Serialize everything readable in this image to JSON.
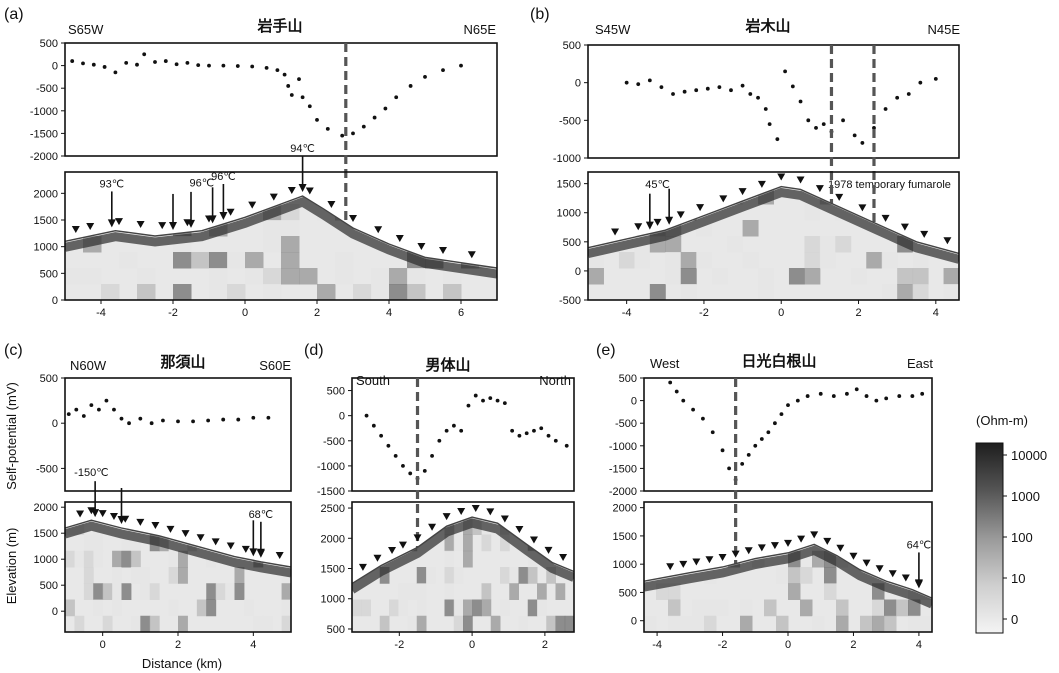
{
  "chart_data": [
    {
      "type": "scatter",
      "panel": "(a)",
      "title": "岩手山",
      "dir_left": "S65W",
      "dir_right": "N65E",
      "xlim": [
        -5,
        7
      ],
      "xticks": [
        -4,
        -2,
        0,
        2,
        4,
        6
      ],
      "sp": {
        "ylim": [
          -2000,
          500
        ],
        "yticks": [
          500,
          0,
          -500,
          -1000,
          -1500,
          -2000
        ],
        "series": [
          {
            "x": -4.8,
            "y": 100
          },
          {
            "x": -4.5,
            "y": 50
          },
          {
            "x": -4.2,
            "y": 20
          },
          {
            "x": -3.9,
            "y": -30
          },
          {
            "x": -3.6,
            "y": -150
          },
          {
            "x": -3.3,
            "y": 60
          },
          {
            "x": -3.0,
            "y": 20
          },
          {
            "x": -2.8,
            "y": 250
          },
          {
            "x": -2.5,
            "y": 80
          },
          {
            "x": -2.2,
            "y": 100
          },
          {
            "x": -1.9,
            "y": 30
          },
          {
            "x": -1.6,
            "y": 60
          },
          {
            "x": -1.3,
            "y": 10
          },
          {
            "x": -1.0,
            "y": 0
          },
          {
            "x": -0.6,
            "y": 0
          },
          {
            "x": -0.2,
            "y": -10
          },
          {
            "x": 0.2,
            "y": -20
          },
          {
            "x": 0.6,
            "y": -50
          },
          {
            "x": 0.9,
            "y": -100
          },
          {
            "x": 1.1,
            "y": -200
          },
          {
            "x": 1.2,
            "y": -450
          },
          {
            "x": 1.3,
            "y": -650
          },
          {
            "x": 1.5,
            "y": -300
          },
          {
            "x": 1.6,
            "y": -700
          },
          {
            "x": 1.8,
            "y": -900
          },
          {
            "x": 2.0,
            "y": -1200
          },
          {
            "x": 2.3,
            "y": -1400
          },
          {
            "x": 2.7,
            "y": -1550
          },
          {
            "x": 3.0,
            "y": -1500
          },
          {
            "x": 3.3,
            "y": -1350
          },
          {
            "x": 3.6,
            "y": -1150
          },
          {
            "x": 3.9,
            "y": -950
          },
          {
            "x": 4.2,
            "y": -700
          },
          {
            "x": 4.6,
            "y": -450
          },
          {
            "x": 5.0,
            "y": -250
          },
          {
            "x": 5.5,
            "y": -100
          },
          {
            "x": 6.0,
            "y": 0
          }
        ]
      },
      "res": {
        "ylim": [
          0,
          2400
        ],
        "yticks": [
          2000,
          1500,
          1000,
          500,
          0
        ],
        "surface": [
          [
            -5,
            1100
          ],
          [
            -3.6,
            1300
          ],
          [
            -2.5,
            1200
          ],
          [
            -1.2,
            1300
          ],
          [
            0,
            1550
          ],
          [
            1.0,
            1800
          ],
          [
            1.6,
            1950
          ],
          [
            2.2,
            1700
          ],
          [
            3.0,
            1350
          ],
          [
            4.0,
            1050
          ],
          [
            5.0,
            800
          ],
          [
            6.0,
            700
          ],
          [
            7.0,
            600
          ]
        ],
        "stations": [
          -4.7,
          -4.3,
          -3.5,
          -2.9,
          -2.3,
          -1.6,
          -1.0,
          -0.4,
          0.2,
          0.8,
          1.3,
          1.8,
          2.4,
          3.0,
          3.7,
          4.3,
          4.9,
          5.5,
          6.3
        ],
        "temp_labels": [
          {
            "label": "93℃",
            "x": -3.7
          },
          {
            "label": "96℃",
            "x": -1.2
          },
          {
            "label": "96℃",
            "x": -0.6
          },
          {
            "label": "94℃",
            "x": 1.6
          }
        ],
        "temp_arrows": [
          -3.7,
          -2.0,
          -1.5,
          -0.9,
          -0.6,
          1.6
        ]
      },
      "dashed_x": [
        2.8
      ]
    },
    {
      "type": "scatter",
      "panel": "(b)",
      "title": "岩木山",
      "dir_left": "S45W",
      "dir_right": "N45E",
      "xlim": [
        -5,
        4.6
      ],
      "xticks": [
        -4,
        -2,
        0,
        2,
        4
      ],
      "sp": {
        "ylim": [
          -1000,
          500
        ],
        "yticks": [
          500,
          0,
          -500,
          -1000
        ],
        "series": [
          {
            "x": -4.0,
            "y": 0
          },
          {
            "x": -3.7,
            "y": -20
          },
          {
            "x": -3.4,
            "y": 30
          },
          {
            "x": -3.1,
            "y": -60
          },
          {
            "x": -2.8,
            "y": -150
          },
          {
            "x": -2.5,
            "y": -120
          },
          {
            "x": -2.2,
            "y": -100
          },
          {
            "x": -1.9,
            "y": -80
          },
          {
            "x": -1.6,
            "y": -60
          },
          {
            "x": -1.3,
            "y": -100
          },
          {
            "x": -1.0,
            "y": -40
          },
          {
            "x": -0.8,
            "y": -150
          },
          {
            "x": -0.6,
            "y": -200
          },
          {
            "x": -0.4,
            "y": -350
          },
          {
            "x": -0.3,
            "y": -550
          },
          {
            "x": -0.1,
            "y": -750
          },
          {
            "x": 0.1,
            "y": 150
          },
          {
            "x": 0.3,
            "y": -50
          },
          {
            "x": 0.5,
            "y": -250
          },
          {
            "x": 0.7,
            "y": -500
          },
          {
            "x": 0.9,
            "y": -600
          },
          {
            "x": 1.1,
            "y": -550
          },
          {
            "x": 1.3,
            "y": -650
          },
          {
            "x": 1.6,
            "y": -500
          },
          {
            "x": 1.9,
            "y": -700
          },
          {
            "x": 2.1,
            "y": -800
          },
          {
            "x": 2.4,
            "y": -600
          },
          {
            "x": 2.7,
            "y": -350
          },
          {
            "x": 3.0,
            "y": -200
          },
          {
            "x": 3.3,
            "y": -150
          },
          {
            "x": 3.6,
            "y": 0
          },
          {
            "x": 4.0,
            "y": 50
          }
        ]
      },
      "res": {
        "ylim": [
          -500,
          1700
        ],
        "yticks": [
          1500,
          1000,
          500,
          0,
          -500
        ],
        "surface": [
          [
            -5,
            400
          ],
          [
            -4,
            550
          ],
          [
            -3,
            700
          ],
          [
            -2,
            950
          ],
          [
            -1,
            1200
          ],
          [
            0,
            1450
          ],
          [
            0.5,
            1400
          ],
          [
            1.5,
            1100
          ],
          [
            2.5,
            800
          ],
          [
            3.5,
            500
          ],
          [
            4.6,
            300
          ]
        ],
        "stations": [
          -4.3,
          -3.7,
          -3.2,
          -2.6,
          -2.1,
          -1.5,
          -1.0,
          -0.5,
          0.0,
          0.5,
          1.0,
          1.5,
          2.1,
          2.7,
          3.2,
          3.7,
          4.3
        ],
        "temp_labels": [
          {
            "label": "45℃",
            "x": -3.2
          }
        ],
        "temp_arrows": [
          -3.4,
          -2.9
        ],
        "annotation": "1978 temporary fumarole"
      },
      "dashed_x": [
        1.3,
        2.4
      ]
    },
    {
      "type": "scatter",
      "panel": "(c)",
      "title": "那須山",
      "dir_left": "N60W",
      "dir_right": "S60E",
      "ylabel_sp": "Self-potential (mV)",
      "ylabel_res": "Elevation (m)",
      "xlabel": "Distance (km)",
      "xlim": [
        -1,
        5
      ],
      "xticks": [
        0,
        2,
        4
      ],
      "sp": {
        "ylim": [
          -750,
          500
        ],
        "yticks": [
          500,
          0,
          -500
        ],
        "series": [
          {
            "x": -0.9,
            "y": 100
          },
          {
            "x": -0.7,
            "y": 150
          },
          {
            "x": -0.5,
            "y": 80
          },
          {
            "x": -0.3,
            "y": 200
          },
          {
            "x": -0.1,
            "y": 150
          },
          {
            "x": 0.1,
            "y": 250
          },
          {
            "x": 0.3,
            "y": 150
          },
          {
            "x": 0.5,
            "y": 50
          },
          {
            "x": 0.7,
            "y": 0
          },
          {
            "x": 1.0,
            "y": 50
          },
          {
            "x": 1.3,
            "y": 0
          },
          {
            "x": 1.6,
            "y": 30
          },
          {
            "x": 2.0,
            "y": 20
          },
          {
            "x": 2.4,
            "y": 20
          },
          {
            "x": 2.8,
            "y": 30
          },
          {
            "x": 3.2,
            "y": 40
          },
          {
            "x": 3.6,
            "y": 40
          },
          {
            "x": 4.0,
            "y": 60
          },
          {
            "x": 4.4,
            "y": 60
          }
        ]
      },
      "res": {
        "ylim": [
          -400,
          2100
        ],
        "yticks": [
          2000,
          1500,
          1000,
          500,
          0
        ],
        "surface": [
          [
            -1,
            1600
          ],
          [
            -0.3,
            1750
          ],
          [
            0.5,
            1600
          ],
          [
            1.5,
            1450
          ],
          [
            2.5,
            1250
          ],
          [
            3.5,
            1050
          ],
          [
            4.2,
            950
          ],
          [
            5,
            850
          ]
        ],
        "stations": [
          -0.6,
          -0.3,
          0.0,
          0.3,
          0.6,
          1.0,
          1.4,
          1.8,
          2.2,
          2.6,
          3.0,
          3.4,
          3.8,
          4.2,
          4.7
        ],
        "temp_labels": [
          {
            "label": "-150℃",
            "x": -0.3
          },
          {
            "label": "68℃",
            "x": 4.2
          }
        ],
        "temp_arrows": [
          -0.2,
          0.5,
          4.0,
          4.2
        ]
      },
      "dashed_x": []
    },
    {
      "type": "scatter",
      "panel": "(d)",
      "title": "男体山",
      "dir_left": "South",
      "dir_right": "North",
      "xlim": [
        -3.3,
        2.8
      ],
      "xticks": [
        -2,
        0,
        2
      ],
      "sp": {
        "ylim": [
          -1500,
          750
        ],
        "yticks": [
          500,
          0,
          -500,
          -1000,
          -1500
        ],
        "series": [
          {
            "x": -2.9,
            "y": 0
          },
          {
            "x": -2.7,
            "y": -200
          },
          {
            "x": -2.5,
            "y": -400
          },
          {
            "x": -2.3,
            "y": -600
          },
          {
            "x": -2.1,
            "y": -800
          },
          {
            "x": -1.9,
            "y": -1000
          },
          {
            "x": -1.7,
            "y": -1150
          },
          {
            "x": -1.5,
            "y": -1250
          },
          {
            "x": -1.3,
            "y": -1100
          },
          {
            "x": -1.1,
            "y": -800
          },
          {
            "x": -0.9,
            "y": -500
          },
          {
            "x": -0.7,
            "y": -300
          },
          {
            "x": -0.5,
            "y": -200
          },
          {
            "x": -0.3,
            "y": -300
          },
          {
            "x": -0.1,
            "y": 200
          },
          {
            "x": 0.1,
            "y": 400
          },
          {
            "x": 0.3,
            "y": 300
          },
          {
            "x": 0.5,
            "y": 350
          },
          {
            "x": 0.7,
            "y": 300
          },
          {
            "x": 0.9,
            "y": 250
          },
          {
            "x": 1.1,
            "y": -300
          },
          {
            "x": 1.3,
            "y": -400
          },
          {
            "x": 1.5,
            "y": -350
          },
          {
            "x": 1.7,
            "y": -300
          },
          {
            "x": 1.9,
            "y": -250
          },
          {
            "x": 2.1,
            "y": -400
          },
          {
            "x": 2.3,
            "y": -500
          },
          {
            "x": 2.6,
            "y": -600
          }
        ]
      },
      "res": {
        "ylim": [
          450,
          2600
        ],
        "yticks": [
          2500,
          2000,
          1500,
          1000,
          500
        ],
        "surface": [
          [
            -3.3,
            1250
          ],
          [
            -2.5,
            1550
          ],
          [
            -1.5,
            1850
          ],
          [
            -0.7,
            2200
          ],
          [
            0,
            2350
          ],
          [
            0.7,
            2250
          ],
          [
            1.5,
            1900
          ],
          [
            2.2,
            1600
          ],
          [
            2.8,
            1450
          ]
        ],
        "stations": [
          -3.0,
          -2.6,
          -2.2,
          -1.9,
          -1.5,
          -1.1,
          -0.7,
          -0.3,
          0.1,
          0.5,
          0.9,
          1.3,
          1.7,
          2.1,
          2.5
        ],
        "temp_labels": [],
        "temp_arrows": []
      },
      "dashed_x": [
        -1.5
      ]
    },
    {
      "type": "scatter",
      "panel": "(e)",
      "title": "日光白根山",
      "dir_left": "West",
      "dir_right": "East",
      "xlim": [
        -4.4,
        4.4
      ],
      "xticks": [
        -4,
        -2,
        0,
        2,
        4
      ],
      "sp": {
        "ylim": [
          -2000,
          500
        ],
        "yticks": [
          500,
          0,
          -500,
          -1000,
          -1500,
          -2000
        ],
        "series": [
          {
            "x": -3.6,
            "y": 400
          },
          {
            "x": -3.4,
            "y": 200
          },
          {
            "x": -3.2,
            "y": 0
          },
          {
            "x": -2.9,
            "y": -200
          },
          {
            "x": -2.6,
            "y": -400
          },
          {
            "x": -2.3,
            "y": -700
          },
          {
            "x": -2.0,
            "y": -1100
          },
          {
            "x": -1.8,
            "y": -1500
          },
          {
            "x": -1.6,
            "y": -1750
          },
          {
            "x": -1.4,
            "y": -1400
          },
          {
            "x": -1.2,
            "y": -1200
          },
          {
            "x": -1.0,
            "y": -1000
          },
          {
            "x": -0.8,
            "y": -850
          },
          {
            "x": -0.6,
            "y": -700
          },
          {
            "x": -0.4,
            "y": -500
          },
          {
            "x": -0.2,
            "y": -300
          },
          {
            "x": 0.0,
            "y": -100
          },
          {
            "x": 0.3,
            "y": 0
          },
          {
            "x": 0.6,
            "y": 100
          },
          {
            "x": 1.0,
            "y": 150
          },
          {
            "x": 1.4,
            "y": 100
          },
          {
            "x": 1.8,
            "y": 150
          },
          {
            "x": 2.1,
            "y": 250
          },
          {
            "x": 2.4,
            "y": 100
          },
          {
            "x": 2.7,
            "y": 0
          },
          {
            "x": 3.0,
            "y": 50
          },
          {
            "x": 3.4,
            "y": 100
          },
          {
            "x": 3.8,
            "y": 100
          },
          {
            "x": 4.1,
            "y": 150
          }
        ]
      },
      "res": {
        "ylim": [
          -200,
          2100
        ],
        "yticks": [
          2000,
          1500,
          1000,
          500,
          0
        ],
        "surface": [
          [
            -4.4,
            700
          ],
          [
            -3,
            850
          ],
          [
            -2,
            950
          ],
          [
            -1,
            1100
          ],
          [
            0,
            1200
          ],
          [
            0.8,
            1350
          ],
          [
            1.5,
            1150
          ],
          [
            2.2,
            900
          ],
          [
            3,
            700
          ],
          [
            3.8,
            550
          ],
          [
            4.4,
            400
          ]
        ],
        "stations": [
          -3.6,
          -3.2,
          -2.8,
          -2.4,
          -2.0,
          -1.6,
          -1.2,
          -0.8,
          -0.4,
          0.0,
          0.4,
          0.8,
          1.2,
          1.6,
          2.0,
          2.4,
          2.8,
          3.2,
          3.6,
          4.0
        ],
        "temp_labels": [
          {
            "label": "64℃",
            "x": 4.0
          }
        ],
        "temp_arrows": [
          4.0
        ]
      },
      "dashed_x": [
        -1.6
      ]
    }
  ],
  "colorbar": {
    "unit": "(Ohm-m)",
    "labels": [
      "10000",
      "1000",
      "100",
      "10",
      "0"
    ]
  }
}
